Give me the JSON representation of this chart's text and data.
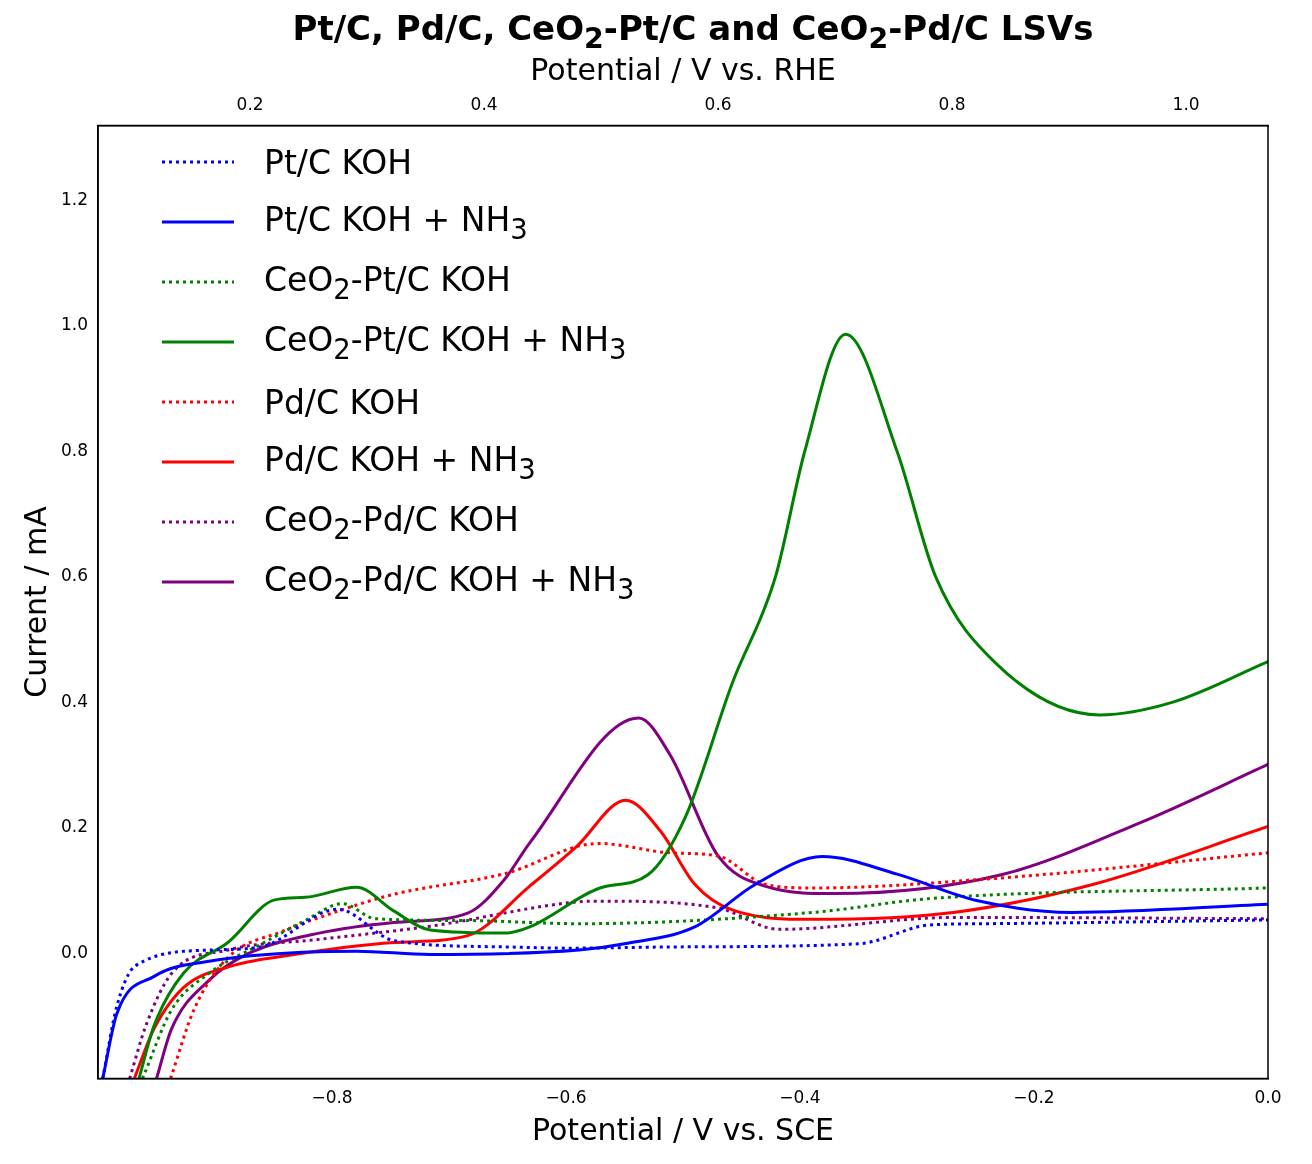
{
  "chart_data": {
    "type": "line",
    "title": "Pt/C, Pd/C, CeO$_{2}$-Pt/C and CeO$_{2}$-Pd/C LSVs",
    "xlabel": "Potential / V vs. SCE",
    "x2label": "Potential / V vs. RHE",
    "ylabel": "Current / mA",
    "xlim": [
      -1.0,
      0.0
    ],
    "xticks": [
      {
        "value": -0.8,
        "label": "−0.8"
      },
      {
        "value": -0.6,
        "label": "−0.6"
      },
      {
        "value": -0.4,
        "label": "−0.4"
      },
      {
        "value": -0.2,
        "label": "−0.2"
      },
      {
        "value": 0.0,
        "label": "0.0"
      }
    ],
    "x2lim": [
      0.07,
      1.07
    ],
    "x2ticks": [
      0.2,
      0.4,
      0.6,
      0.8,
      {
        "value": 1.0,
        "label": "1.0"
      }
    ],
    "ylim": [
      -0.2,
      1.32
    ],
    "yticks": [
      {
        "value": 0.0,
        "label": "0.0"
      },
      0.2,
      0.4,
      0.6,
      0.8,
      {
        "value": 1.0,
        "label": "1.0"
      },
      1.2
    ],
    "grid": false,
    "legend": "top left",
    "marker": "none",
    "series": [
      {
        "name": "Pt/C KOH",
        "color": "#0000ff",
        "line_style": "dotted",
        "x": [
          -0.996,
          -0.984,
          -0.968,
          -0.905,
          -0.861,
          -0.795,
          -0.747,
          -0.652,
          -0.596,
          -0.507,
          -0.35,
          -0.289,
          -0.242,
          0.0
        ],
        "values": [
          -0.2,
          -0.085,
          -0.02,
          0.005,
          0.01,
          0.07,
          0.02,
          0.01,
          0.008,
          0.01,
          0.015,
          0.045,
          0.047,
          0.053
        ]
      },
      {
        "name": "Pt/C KOH + NH$_{3}$",
        "color": "#0000ff",
        "line_style": "solid",
        "x": [
          -0.996,
          -0.984,
          -0.952,
          -0.905,
          -0.779,
          -0.716,
          -0.589,
          -0.55,
          -0.49,
          -0.438,
          -0.381,
          -0.317,
          -0.249,
          -0.168,
          0.0
        ],
        "values": [
          -0.2,
          -0.097,
          -0.037,
          -0.013,
          0.003,
          -0.002,
          0.005,
          0.015,
          0.042,
          0.11,
          0.154,
          0.126,
          0.084,
          0.065,
          0.078
        ]
      },
      {
        "name": "CeO$_{2}$-Pt/C KOH",
        "color": "#008000",
        "line_style": "dotted",
        "x": [
          -0.962,
          -0.937,
          -0.905,
          -0.858,
          -0.823,
          -0.791,
          -0.763,
          -0.684,
          -0.589,
          -0.389,
          -0.289,
          0.0
        ],
        "values": [
          -0.2,
          -0.09,
          -0.032,
          0.017,
          0.052,
          0.079,
          0.055,
          0.052,
          0.047,
          0.065,
          0.087,
          0.104
        ]
      },
      {
        "name": "CeO$_{2}$-Pt/C KOH + NH$_{3}$",
        "color": "#008000",
        "line_style": "solid",
        "x": [
          -0.965,
          -0.952,
          -0.927,
          -0.889,
          -0.849,
          -0.823,
          -0.779,
          -0.747,
          -0.716,
          -0.652,
          -0.631,
          -0.571,
          -0.53,
          -0.498,
          -0.458,
          -0.421,
          -0.396,
          -0.361,
          -0.317,
          -0.284,
          -0.233,
          -0.144,
          -0.082,
          0.0
        ],
        "values": [
          -0.2,
          -0.115,
          -0.032,
          0.017,
          0.085,
          0.089,
          0.105,
          0.067,
          0.037,
          0.032,
          0.042,
          0.104,
          0.125,
          0.217,
          0.43,
          0.6,
          0.8,
          0.987,
          0.8,
          0.6,
          0.463,
          0.38,
          0.4,
          0.465
        ]
      },
      {
        "name": "Pd/C KOH",
        "color": "#ff0000",
        "line_style": "dotted",
        "x": [
          -0.938,
          -0.918,
          -0.889,
          -0.842,
          -0.795,
          -0.747,
          -0.652,
          -0.572,
          -0.511,
          -0.47,
          -0.43,
          -0.389,
          -0.228,
          0.0
        ],
        "values": [
          -0.2,
          -0.09,
          -0.007,
          0.035,
          0.067,
          0.094,
          0.127,
          0.175,
          0.16,
          0.155,
          0.11,
          0.104,
          0.12,
          0.16
        ]
      },
      {
        "name": "Pd/C KOH + NH$_{3}$",
        "color": "#ff0000",
        "line_style": "solid",
        "x": [
          -0.969,
          -0.952,
          -0.927,
          -0.889,
          -0.842,
          -0.747,
          -0.684,
          -0.631,
          -0.591,
          -0.549,
          -0.519,
          -0.49,
          -0.458,
          -0.389,
          -0.269,
          -0.149,
          0.0
        ],
        "values": [
          -0.2,
          -0.12,
          -0.055,
          -0.022,
          -0.005,
          0.017,
          0.028,
          0.107,
          0.17,
          0.244,
          0.194,
          0.11,
          0.069,
          0.054,
          0.065,
          0.11,
          0.202
        ]
      },
      {
        "name": "CeO$_{2}$-Pd/C KOH",
        "color": "#800080",
        "line_style": "dotted",
        "x": [
          -0.973,
          -0.959,
          -0.937,
          -0.889,
          -0.811,
          -0.716,
          -0.589,
          -0.571,
          -0.47,
          -0.418,
          -0.269,
          0.0
        ],
        "values": [
          -0.2,
          -0.115,
          -0.032,
          0.005,
          0.022,
          0.043,
          0.082,
          0.083,
          0.072,
          0.038,
          0.057,
          0.055
        ]
      },
      {
        "name": "CeO$_{2}$-Pd/C KOH + NH$_{3}$",
        "color": "#800080",
        "line_style": "solid",
        "x": [
          -0.95,
          -0.937,
          -0.905,
          -0.873,
          -0.811,
          -0.747,
          -0.684,
          -0.652,
          -0.631,
          -0.538,
          -0.511,
          -0.47,
          -0.43,
          -0.37,
          -0.228,
          -0.108,
          0.0
        ],
        "values": [
          -0.2,
          -0.12,
          -0.043,
          -0.002,
          0.032,
          0.049,
          0.064,
          0.119,
          0.176,
          0.375,
          0.316,
          0.155,
          0.107,
          0.095,
          0.125,
          0.209,
          0.301
        ]
      }
    ]
  }
}
